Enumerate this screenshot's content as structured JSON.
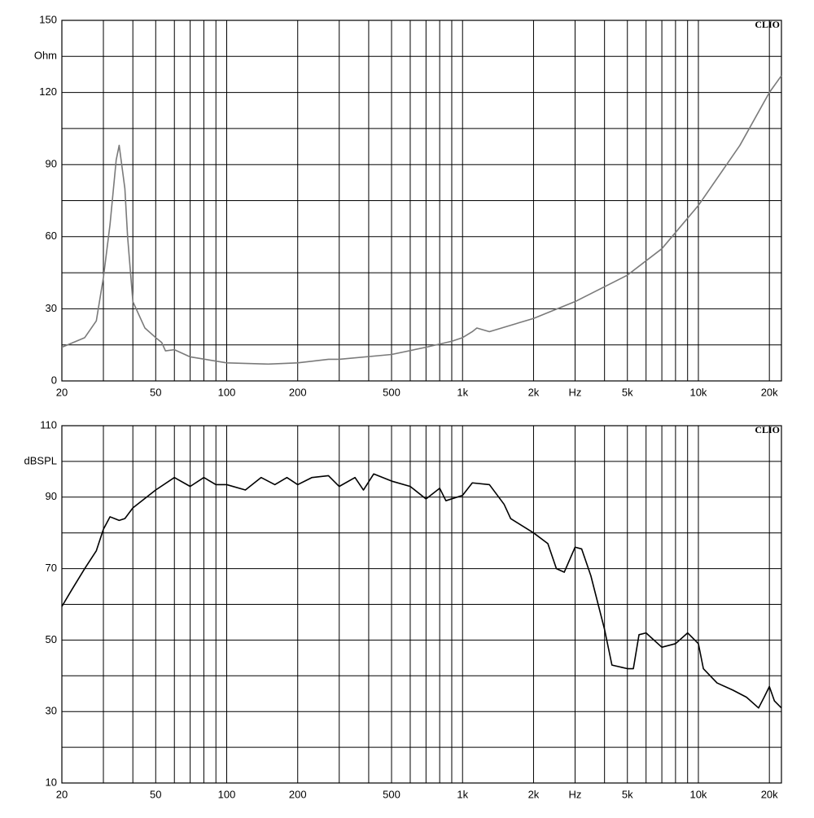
{
  "chart_data": [
    {
      "type": "line",
      "title": "CLIO",
      "xlog": true,
      "grid": true,
      "xlim": [
        20,
        22500
      ],
      "ylim": [
        0,
        150
      ],
      "xticks": [
        20,
        50,
        100,
        200,
        500,
        {
          "value": 1000,
          "label": "1k"
        },
        {
          "value": 2000,
          "label": "2k"
        },
        {
          "value": 3000,
          "label": "Hz"
        },
        {
          "value": 5000,
          "label": "5k"
        },
        {
          "value": 10000,
          "label": "10k"
        },
        {
          "value": 20000,
          "label": "20k"
        }
      ],
      "xgrid": [
        30,
        40,
        60,
        70,
        80,
        90,
        300,
        400,
        600,
        700,
        800,
        900,
        4000,
        6000,
        7000,
        8000,
        9000
      ],
      "yticks": [
        0,
        30,
        60,
        90,
        120,
        {
          "value": 135,
          "label": "Ohm"
        },
        150
      ],
      "ygrid": [
        15,
        45,
        75,
        105
      ],
      "x": [
        20,
        25,
        28,
        30,
        32,
        34,
        35,
        37,
        38,
        40,
        45,
        50,
        53,
        55,
        60,
        70,
        100,
        150,
        200,
        270,
        300,
        500,
        700,
        900,
        1000,
        1100,
        1150,
        1300,
        2000,
        3000,
        5000,
        7000,
        10000,
        15000,
        20000,
        22500
      ],
      "series": [
        {
          "color": "#7a7a7a",
          "values": [
            14,
            18,
            25,
            43,
            65,
            92,
            98,
            80,
            60,
            33,
            22,
            18,
            16,
            12.5,
            13,
            10,
            7.5,
            7,
            7.5,
            9,
            9,
            11,
            14,
            16.5,
            18,
            20.5,
            22,
            20.5,
            26,
            33,
            44,
            55,
            73,
            98,
            120,
            127
          ]
        }
      ]
    },
    {
      "type": "line",
      "title": "CLIO",
      "xlog": true,
      "grid": true,
      "xlim": [
        20,
        22500
      ],
      "ylim": [
        10,
        110
      ],
      "xticks": [
        20,
        50,
        100,
        200,
        500,
        {
          "value": 1000,
          "label": "1k"
        },
        {
          "value": 2000,
          "label": "2k"
        },
        {
          "value": 3000,
          "label": "Hz"
        },
        {
          "value": 5000,
          "label": "5k"
        },
        {
          "value": 10000,
          "label": "10k"
        },
        {
          "value": 20000,
          "label": "20k"
        }
      ],
      "xgrid": [
        30,
        40,
        60,
        70,
        80,
        90,
        300,
        400,
        600,
        700,
        800,
        900,
        4000,
        6000,
        7000,
        8000,
        9000
      ],
      "yticks": [
        10,
        30,
        50,
        70,
        90,
        {
          "value": 100,
          "label": "dBSPL"
        },
        110
      ],
      "ygrid": [
        20,
        40,
        60,
        80
      ],
      "x": [
        20,
        22,
        25,
        28,
        30,
        32,
        35,
        37,
        40,
        50,
        60,
        70,
        80,
        90,
        100,
        120,
        140,
        160,
        180,
        200,
        230,
        270,
        300,
        350,
        380,
        420,
        500,
        600,
        700,
        800,
        850,
        1000,
        1100,
        1300,
        1500,
        1600,
        2000,
        2300,
        2500,
        2700,
        3000,
        3200,
        3500,
        4000,
        4300,
        5000,
        5300,
        5600,
        6000,
        7000,
        8000,
        9000,
        10000,
        10500,
        12000,
        14000,
        16000,
        18000,
        19000,
        20000,
        21000,
        22500
      ],
      "series": [
        {
          "color": "#000000",
          "values": [
            59.4,
            64,
            70,
            75,
            81,
            84.5,
            83.5,
            84,
            87,
            92,
            95.5,
            93,
            95.5,
            93.5,
            93.5,
            92,
            95.5,
            93.5,
            95.5,
            93.5,
            95.5,
            96,
            93,
            95.5,
            92,
            96.5,
            94.5,
            93,
            89.5,
            92.5,
            89,
            90.5,
            94,
            93.5,
            88,
            84,
            80,
            77,
            70,
            69,
            76,
            75.5,
            68,
            53,
            43,
            42,
            42,
            51.5,
            52,
            48,
            49,
            52,
            49,
            42,
            38,
            36,
            34,
            31,
            34,
            37,
            33,
            31
          ]
        }
      ]
    }
  ]
}
